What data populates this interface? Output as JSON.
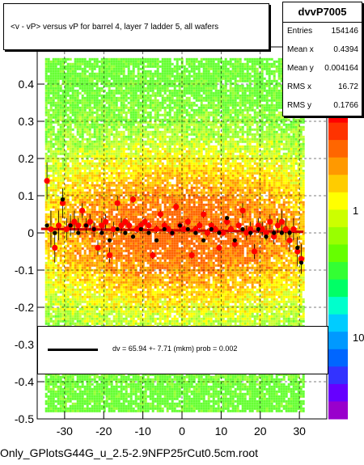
{
  "chart_data": {
    "type": "scatter",
    "title": "<v - vP>       versus   vP for barrel 4, layer 7 ladder 5, all wafers",
    "xlim": [
      -37,
      37
    ],
    "ylim": [
      -0.5,
      0.5
    ],
    "x_ticks": [
      -30,
      -20,
      -10,
      0,
      10,
      20,
      30
    ],
    "x_tick_labels": [
      "-30",
      "-20",
      "-10",
      "0",
      "10",
      "20",
      "30"
    ],
    "y_ticks": [
      -0.5,
      -0.4,
      -0.3,
      -0.2,
      -0.1,
      0,
      0.1,
      0.2,
      0.3,
      0.4
    ],
    "y_tick_labels": [
      "-0.5",
      "-0.4",
      "-0.3",
      "-0.2",
      "-0.1",
      "0",
      "0.1",
      "0.2",
      "0.3",
      "0.4"
    ],
    "grid": true,
    "z_scale": "log",
    "colorbar_labels": [
      "1",
      "10"
    ],
    "stats": {
      "name": "dvvP7005",
      "entries_label": "Entries",
      "entries": "154146",
      "meanx_label": "Mean x",
      "meanx": "0.4394",
      "meany_label": "Mean y",
      "meany": "0.004164",
      "rmsx_label": "RMS x",
      "rmsx": "16.72",
      "rmsy_label": "RMS y",
      "rmsy": "0.1766"
    },
    "fit": {
      "label": "dv =   65.94 +-  7.71 (mkm) prob = 0.002",
      "intercept": 0.00659,
      "slope": -0.00012
    },
    "series": [
      {
        "marker": "red-circle",
        "color": "#ff0000",
        "x": [
          -34.5,
          -33.5,
          -32.5,
          -31.5,
          -30.5,
          -29.5,
          -28.5,
          -27.5,
          -26.5,
          -25.5,
          -24.5,
          -23.5,
          -22.5,
          -21.5,
          -20.5,
          -19.5,
          -18.5,
          -17.5,
          -16.5,
          -15.5,
          -14.5,
          -13.5,
          -12.5,
          -11.5,
          -10.5,
          -9.5,
          -8.5,
          -7.5,
          -6.5,
          -5.5,
          -4.5,
          -3.5,
          -2.5,
          -1.5,
          -0.5,
          0.5,
          1.5,
          2.5,
          3.5,
          4.5,
          5.5,
          6.5,
          7.5,
          8.5,
          9.5,
          10.5,
          11.5,
          12.5,
          13.5,
          14.5,
          15.5,
          16.5,
          17.5,
          18.5,
          19.5,
          20.5,
          21.5,
          22.5,
          23.5,
          24.5,
          25.5,
          26.5,
          27.5,
          28.5,
          29.5,
          30.5
        ],
        "y": [
          0.14,
          0.01,
          -0.04,
          0.02,
          0.08,
          0.01,
          0.02,
          0.03,
          0.02,
          0.06,
          0.02,
          0.03,
          0.01,
          -0.04,
          0.02,
          0.03,
          -0.06,
          0.01,
          0.08,
          0.02,
          0.03,
          0.02,
          0.09,
          0.01,
          0.02,
          0.03,
          0.02,
          -0.06,
          0.01,
          0.05,
          0.02,
          0.01,
          0.0,
          0.07,
          0.02,
          0.01,
          0.03,
          -0.06,
          0.01,
          0.02,
          0.05,
          0.0,
          0.02,
          0.01,
          -0.04,
          0.0,
          0.03,
          0.01,
          -0.03,
          0.02,
          0.06,
          0.0,
          0.01,
          -0.05,
          0.02,
          0.01,
          0.0,
          0.03,
          -0.01,
          0.02,
          0.03,
          0.01,
          -0.02,
          0.01,
          -0.05,
          -0.07
        ],
        "yerr": [
          0.05,
          0.05,
          0.04,
          0.04,
          0.04,
          0.03,
          0.03,
          0.03,
          0.02,
          0.02,
          0.02,
          0.02,
          0.02,
          0.02,
          0.02,
          0.02,
          0.02,
          0.02,
          0.02,
          0.02,
          0.01,
          0.01,
          0.01,
          0.01,
          0.01,
          0.01,
          0.01,
          0.01,
          0.01,
          0.01,
          0.01,
          0.01,
          0.01,
          0.01,
          0.01,
          0.01,
          0.01,
          0.01,
          0.01,
          0.01,
          0.01,
          0.01,
          0.01,
          0.01,
          0.01,
          0.01,
          0.01,
          0.01,
          0.01,
          0.01,
          0.02,
          0.02,
          0.02,
          0.02,
          0.02,
          0.02,
          0.02,
          0.02,
          0.02,
          0.02,
          0.03,
          0.03,
          0.03,
          0.03,
          0.04,
          0.04
        ]
      },
      {
        "marker": "black-circle",
        "color": "#000000",
        "x": [
          -34.5,
          -32.5,
          -30.5,
          -28.5,
          -26.5,
          -24.5,
          -22.5,
          -20.5,
          -18.5,
          -16.5,
          -14.5,
          -12.5,
          -10.5,
          -8.5,
          -6.5,
          -4.5,
          -2.5,
          -0.5,
          1.5,
          3.5,
          5.5,
          7.5,
          9.5,
          11.5,
          13.5,
          15.5,
          17.5,
          19.5,
          21.5,
          23.5,
          25.5,
          27.5,
          29.5,
          30.5
        ],
        "y": [
          0.02,
          0.0,
          0.09,
          0.02,
          0.0,
          0.02,
          0.01,
          0.0,
          -0.02,
          0.01,
          0.0,
          -0.01,
          0.01,
          0.0,
          -0.02,
          0.01,
          0.0,
          0.02,
          0.01,
          0.0,
          -0.02,
          0.01,
          0.0,
          0.04,
          -0.02,
          0.01,
          0.0,
          0.01,
          -0.01,
          0.0,
          0.0,
          0.0,
          -0.04,
          -0.08
        ]
      }
    ]
  },
  "footer": "Only_GPlotsG44G_u_2.5-2.9NFP25rCut0.5cm.root"
}
